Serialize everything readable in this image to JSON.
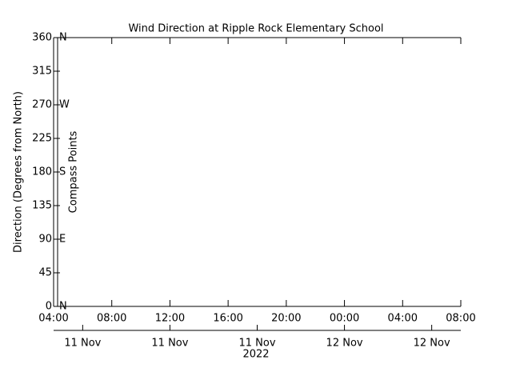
{
  "chart_data": {
    "type": "line",
    "title": "Wind Direction at Ripple Rock Elementary School",
    "ylabel": "Direction (Degrees from North)",
    "y2label": "Compass Points",
    "xlabel": "2022",
    "series": [],
    "xlim": [
      "2022-11-11T04:00",
      "2022-11-12T08:00"
    ],
    "xticks": [
      {
        "value": "2022-11-11T04:00",
        "label": "04:00"
      },
      {
        "value": "2022-11-11T08:00",
        "label": "08:00"
      },
      {
        "value": "2022-11-11T12:00",
        "label": "12:00"
      },
      {
        "value": "2022-11-11T16:00",
        "label": "16:00"
      },
      {
        "value": "2022-11-11T20:00",
        "label": "20:00"
      },
      {
        "value": "2022-11-12T00:00",
        "label": "00:00"
      },
      {
        "value": "2022-11-12T04:00",
        "label": "04:00"
      },
      {
        "value": "2022-11-12T08:00",
        "label": "08:00"
      }
    ],
    "x2ticks": [
      {
        "value": "2022-11-11T06:00",
        "label": "11 Nov"
      },
      {
        "value": "2022-11-11T12:00",
        "label": "11 Nov"
      },
      {
        "value": "2022-11-11T18:00",
        "label": "11 Nov"
      },
      {
        "value": "2022-11-12T00:00",
        "label": "12 Nov"
      },
      {
        "value": "2022-11-12T06:00",
        "label": "12 Nov"
      }
    ],
    "ylim": [
      0,
      360
    ],
    "yticks": [
      0,
      45,
      90,
      135,
      180,
      225,
      270,
      315,
      360
    ],
    "y2lim": [
      0,
      360
    ],
    "y2ticks": [
      {
        "value": 0,
        "label": "N"
      },
      {
        "value": 90,
        "label": "E"
      },
      {
        "value": 180,
        "label": "S"
      },
      {
        "value": 270,
        "label": "W"
      },
      {
        "value": 360,
        "label": "N"
      }
    ]
  }
}
